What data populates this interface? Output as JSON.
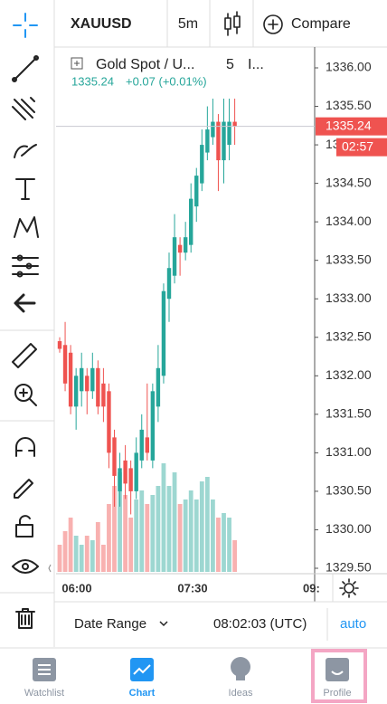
{
  "header": {
    "symbol": "XAUUSD",
    "interval": "5m",
    "compare": "Compare"
  },
  "legend": {
    "name": "Gold Spot / U...",
    "interval": "5",
    "exchange": "I...",
    "price": "1335.24",
    "change": "+0.07 (+0.01%)"
  },
  "chart": {
    "price_ticks": [
      {
        "value": 1336,
        "label": "1336.00"
      },
      {
        "value": 1335.5,
        "label": "1335.50"
      },
      {
        "value": 1335,
        "label": "1335.00"
      },
      {
        "value": 1334.5,
        "label": "1334.50"
      },
      {
        "value": 1334,
        "label": "1334.00"
      },
      {
        "value": 1333.5,
        "label": "1333.50"
      },
      {
        "value": 1333,
        "label": "1333.00"
      },
      {
        "value": 1332.5,
        "label": "1332.50"
      },
      {
        "value": 1332,
        "label": "1332.00"
      },
      {
        "value": 1331.5,
        "label": "1331.50"
      },
      {
        "value": 1331,
        "label": "1331.00"
      },
      {
        "value": 1330.5,
        "label": "1330.50"
      },
      {
        "value": 1330,
        "label": "1330.00"
      },
      {
        "value": 1329.5,
        "label": "1329.50"
      }
    ],
    "time_ticks": [
      "06:00",
      "07:30",
      "09:"
    ],
    "last_price": "1335.24",
    "countdown": "02:57",
    "candles": [
      {
        "open": 1332.45,
        "high": 1332.5,
        "low": 1332.3,
        "close": 1332.35,
        "volume": 30
      },
      {
        "open": 1332.4,
        "high": 1332.7,
        "low": 1331.8,
        "close": 1331.9,
        "volume": 45
      },
      {
        "open": 1332.3,
        "high": 1332.4,
        "low": 1331.5,
        "close": 1331.6,
        "volume": 60
      },
      {
        "open": 1331.6,
        "high": 1332.1,
        "low": 1331.3,
        "close": 1332.0,
        "volume": 40
      },
      {
        "open": 1331.8,
        "high": 1332.3,
        "low": 1331.6,
        "close": 1332.1,
        "volume": 30
      },
      {
        "open": 1332.0,
        "high": 1332.1,
        "low": 1331.5,
        "close": 1331.8,
        "volume": 40
      },
      {
        "open": 1331.8,
        "high": 1332.3,
        "low": 1331.7,
        "close": 1332.1,
        "volume": 35
      },
      {
        "open": 1332.1,
        "high": 1332.2,
        "low": 1331.5,
        "close": 1331.6,
        "volume": 55
      },
      {
        "open": 1331.9,
        "high": 1332.1,
        "low": 1331.4,
        "close": 1331.6,
        "volume": 30
      },
      {
        "open": 1331.8,
        "high": 1331.9,
        "low": 1330.8,
        "close": 1331.0,
        "volume": 75
      },
      {
        "open": 1331.2,
        "high": 1331.3,
        "low": 1330.3,
        "close": 1330.7,
        "volume": 95
      },
      {
        "open": 1330.5,
        "high": 1331.0,
        "low": 1330.3,
        "close": 1330.8,
        "volume": 110
      },
      {
        "open": 1330.9,
        "high": 1331.1,
        "low": 1330.4,
        "close": 1330.6,
        "volume": 85
      },
      {
        "open": 1330.8,
        "high": 1330.9,
        "low": 1330.2,
        "close": 1330.5,
        "volume": 60
      },
      {
        "open": 1330.5,
        "high": 1331.2,
        "low": 1330.4,
        "close": 1331.0,
        "volume": 80
      },
      {
        "open": 1330.9,
        "high": 1331.5,
        "low": 1330.8,
        "close": 1331.3,
        "volume": 90
      },
      {
        "open": 1331.2,
        "high": 1331.9,
        "low": 1330.9,
        "close": 1331.0,
        "volume": 75
      },
      {
        "open": 1330.9,
        "high": 1331.9,
        "low": 1330.8,
        "close": 1331.8,
        "volume": 85
      },
      {
        "open": 1331.6,
        "high": 1332.4,
        "low": 1331.4,
        "close": 1332.1,
        "volume": 95
      },
      {
        "open": 1332.0,
        "high": 1333.2,
        "low": 1331.9,
        "close": 1333.1,
        "volume": 120
      },
      {
        "open": 1333.0,
        "high": 1333.6,
        "low": 1332.7,
        "close": 1333.4,
        "volume": 95
      },
      {
        "open": 1333.3,
        "high": 1334.1,
        "low": 1333.2,
        "close": 1333.8,
        "volume": 110
      },
      {
        "open": 1333.7,
        "high": 1333.8,
        "low": 1333.3,
        "close": 1333.6,
        "volume": 75
      },
      {
        "open": 1333.6,
        "high": 1334.0,
        "low": 1333.5,
        "close": 1333.8,
        "volume": 80
      },
      {
        "open": 1333.7,
        "high": 1334.5,
        "low": 1333.6,
        "close": 1334.3,
        "volume": 90
      },
      {
        "open": 1334.2,
        "high": 1334.7,
        "low": 1334.0,
        "close": 1334.6,
        "volume": 80
      },
      {
        "open": 1334.5,
        "high": 1335.2,
        "low": 1334.4,
        "close": 1335.0,
        "volume": 100
      },
      {
        "open": 1334.9,
        "high": 1335.5,
        "low": 1334.8,
        "close": 1335.2,
        "volume": 105
      },
      {
        "open": 1335.1,
        "high": 1335.6,
        "low": 1335.0,
        "close": 1335.3,
        "volume": 80
      },
      {
        "open": 1335.3,
        "high": 1335.4,
        "low": 1334.4,
        "close": 1334.8,
        "volume": 60
      },
      {
        "open": 1334.8,
        "high": 1335.6,
        "low": 1334.5,
        "close": 1335.3,
        "volume": 65
      },
      {
        "open": 1335.0,
        "high": 1335.6,
        "low": 1334.8,
        "close": 1335.3,
        "volume": 60
      },
      {
        "open": 1335.3,
        "high": 1335.6,
        "low": 1335.0,
        "close": 1335.24,
        "volume": 35
      }
    ]
  },
  "footer": {
    "date_range": "Date Range",
    "time": "08:02:03 (UTC)",
    "auto": "auto"
  },
  "nav": [
    "Watchlist",
    "Chart",
    "Ideas",
    "Profile"
  ]
}
